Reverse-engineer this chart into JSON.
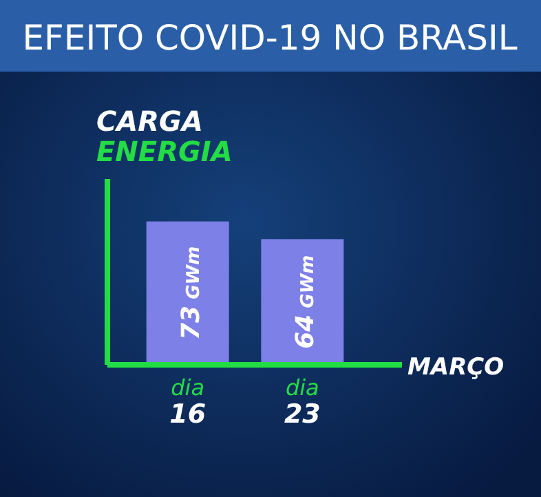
{
  "chart_data": {
    "type": "bar",
    "title": "EFEITO COVID-19 NO BRASIL",
    "ylabel": "CARGA ENERGIA",
    "xlabel": "MARÇO",
    "categories": [
      "dia 16",
      "dia 23"
    ],
    "values": [
      73,
      64
    ],
    "value_labels": [
      "73 GWm",
      "64 GWm"
    ],
    "color": "#7d80e6"
  }
}
